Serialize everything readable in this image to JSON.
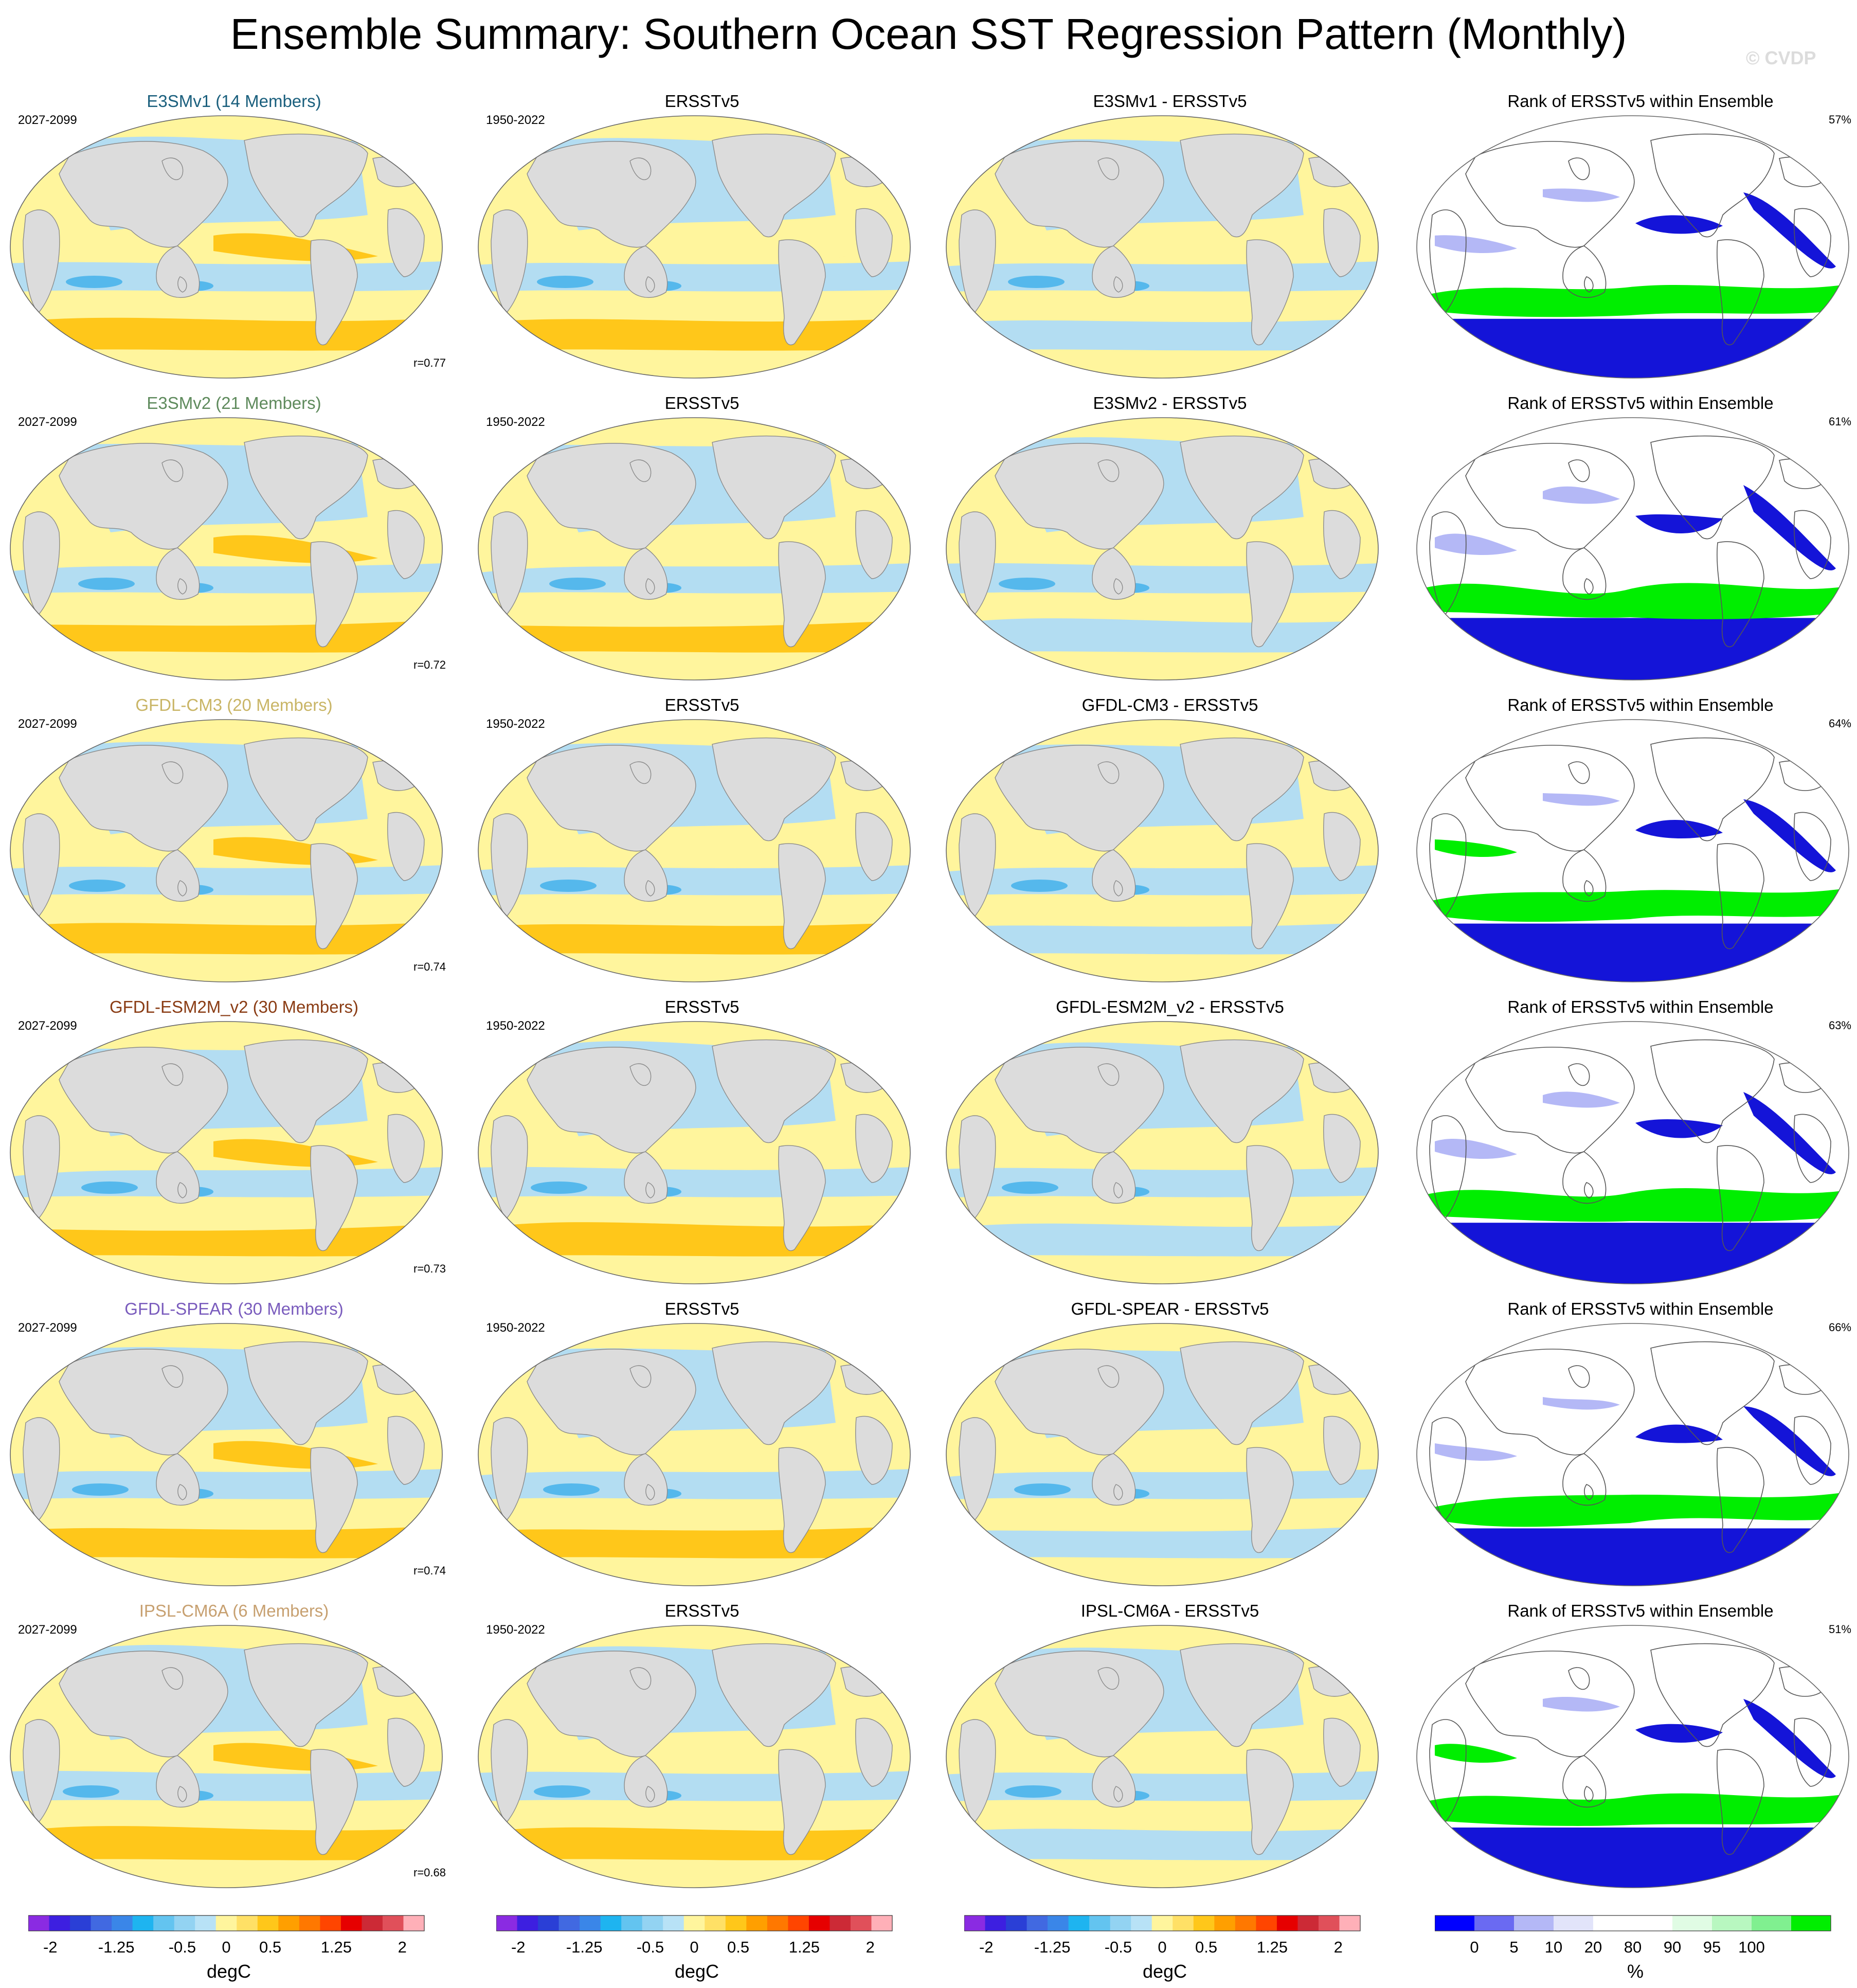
{
  "figure_title": "Ensemble Summary: Southern Ocean SST Regression Pattern (Monthly)",
  "watermark": "© CVDP",
  "colors": {
    "land": "#dcdcdc",
    "ocean_warm": "#fff59d",
    "ocean_cool": "#b3ddf2",
    "ocean_orange": "#ffc71a",
    "ocean_blue": "#55b8ec",
    "rank_green": "#00ee00",
    "rank_blue": "#1414d8",
    "rank_lightblue": "#b4b8f6"
  },
  "model_rows": [
    {
      "model_title": "E3SMv1 (14 Members)",
      "title_color": "#1a5f7d",
      "model_years": "2027-2099",
      "corr": "r=0.77",
      "obs_title": "ERSSTv5",
      "obs_years": "1950-2022",
      "diff_title": "E3SMv1 - ERSSTv5",
      "rank_title": "Rank of ERSSTv5 within Ensemble",
      "rank_pct": "57%"
    },
    {
      "model_title": "E3SMv2 (21 Members)",
      "title_color": "#5e8a5c",
      "model_years": "2027-2099",
      "corr": "r=0.72",
      "obs_title": "ERSSTv5",
      "obs_years": "1950-2022",
      "diff_title": "E3SMv2 - ERSSTv5",
      "rank_title": "Rank of ERSSTv5 within Ensemble",
      "rank_pct": "61%"
    },
    {
      "model_title": "GFDL-CM3 (20 Members)",
      "title_color": "#c9b566",
      "model_years": "2027-2099",
      "corr": "r=0.74",
      "obs_title": "ERSSTv5",
      "obs_years": "1950-2022",
      "diff_title": "GFDL-CM3 - ERSSTv5",
      "rank_title": "Rank of ERSSTv5 within Ensemble",
      "rank_pct": "64%"
    },
    {
      "model_title": "GFDL-ESM2M_v2 (30 Members)",
      "title_color": "#8a3c14",
      "model_years": "2027-2099",
      "corr": "r=0.73",
      "obs_title": "ERSSTv5",
      "obs_years": "1950-2022",
      "diff_title": "GFDL-ESM2M_v2 - ERSSTv5",
      "rank_title": "Rank of ERSSTv5 within Ensemble",
      "rank_pct": "63%"
    },
    {
      "model_title": "GFDL-SPEAR (30 Members)",
      "title_color": "#7a5cbd",
      "model_years": "2027-2099",
      "corr": "r=0.74",
      "obs_title": "ERSSTv5",
      "obs_years": "1950-2022",
      "diff_title": "GFDL-SPEAR - ERSSTv5",
      "rank_title": "Rank of ERSSTv5 within Ensemble",
      "rank_pct": "66%"
    },
    {
      "model_title": "IPSL-CM6A (6 Members)",
      "title_color": "#c7a070",
      "model_years": "2027-2099",
      "corr": "r=0.68",
      "obs_title": "ERSSTv5",
      "obs_years": "1950-2022",
      "diff_title": "IPSL-CM6A - ERSSTv5",
      "rank_title": "Rank of ERSSTv5 within Ensemble",
      "rank_pct": "51%"
    }
  ],
  "sst_colorbar": {
    "colors": [
      "#8a2be2",
      "#3d1fe0",
      "#2a3fd6",
      "#4169e1",
      "#3a86e8",
      "#1eb4f0",
      "#63c4f0",
      "#93d3f2",
      "#b8e2f6",
      "#fff59d",
      "#ffe066",
      "#ffc71a",
      "#ff9f00",
      "#ff7800",
      "#ff4500",
      "#e60000",
      "#cc2a36",
      "#e0505a",
      "#ffb0b8"
    ],
    "labels": [
      "-2",
      "-1.25",
      "-0.5",
      "0",
      "0.5",
      "1.25",
      "2"
    ],
    "label_values": [
      -2,
      -1.25,
      -0.5,
      0,
      0.5,
      1.25,
      2
    ],
    "range": [
      -2.25,
      2.25
    ],
    "unit": "degC"
  },
  "rank_colorbar": {
    "colors": [
      "#0000ff",
      "#6a6af2",
      "#b4b8f6",
      "#e2e4fa",
      "#ffffff",
      "#ffffff",
      "#e0fce4",
      "#b8f7c0",
      "#80f090",
      "#00ee00"
    ],
    "labels": [
      "0",
      "5",
      "10",
      "20",
      "80",
      "90",
      "95",
      "100"
    ],
    "unit": "%"
  }
}
